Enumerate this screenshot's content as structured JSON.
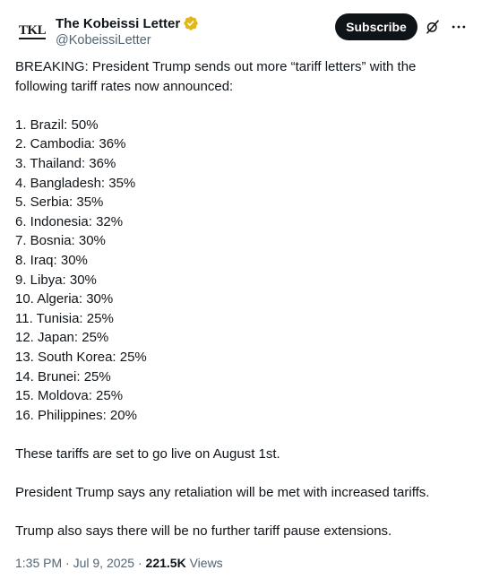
{
  "author": {
    "display_name": "The Kobeissi Letter",
    "handle": "@KobeissiLetter",
    "avatar_text": "TKL",
    "verified_badge_color": "#e2b719"
  },
  "actions": {
    "subscribe_label": "Subscribe"
  },
  "tweet": {
    "intro": "BREAKING: President Trump sends out more “tariff letters” with the following tariff rates now announced:",
    "list": [
      "1. Brazil: 50%",
      "2. Cambodia: 36%",
      "3. Thailand: 36%",
      "4. Bangladesh: 35%",
      "5. Serbia: 35%",
      "6. Indonesia: 32%",
      "7. Bosnia: 30%",
      "8. Iraq: 30%",
      "9. Libya: 30%",
      "10. Algeria: 30%",
      "11. Tunisia: 25%",
      "12. Japan: 25%",
      "13. South Korea: 25%",
      "14. Brunei: 25%",
      "15. Moldova: 25%",
      "16. Philippines: 20%"
    ],
    "para2": "These tariffs are set to go live on August 1st.",
    "para3": "President Trump says any retaliation will be met with increased tariffs.",
    "para4": "Trump also says there will be no further tariff pause extensions."
  },
  "meta": {
    "time": "1:35 PM",
    "separator": "·",
    "date": "Jul 9, 2025",
    "views_count": "221.5K",
    "views_label": "Views"
  },
  "icons": {
    "grok": "grok-icon",
    "more": "more-options-icon"
  }
}
